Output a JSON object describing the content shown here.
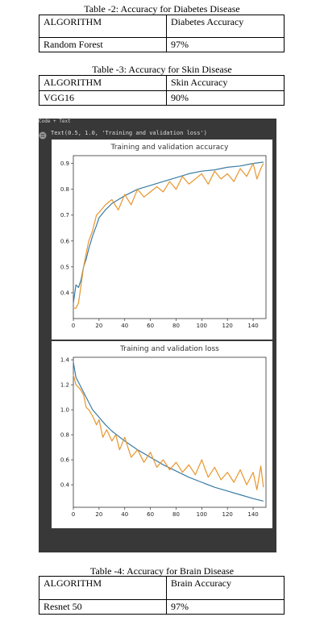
{
  "tables": [
    {
      "caption": "Table -2: Accuracy for Diabetes Disease",
      "header": [
        "ALGORITHM",
        "Diabetes Accuracy"
      ],
      "row": [
        "Random Forest",
        "97%"
      ]
    },
    {
      "caption": "Table -3: Accuracy for  Skin Disease",
      "header": [
        "ALGORITHM",
        "Skin Accuracy"
      ],
      "row": [
        "VGG16",
        "90%"
      ]
    },
    {
      "caption": "Table -4: Accuracy for Brain Disease",
      "header": [
        "ALGORITHM",
        "Brain Accuracy"
      ],
      "row": [
        "Resnet 50",
        "97%"
      ]
    }
  ],
  "notebook": {
    "header_text": "Code  + Text",
    "output_text": "Text(0.5, 1.0, 'Training and validation loss')",
    "colors": {
      "background": "#383838",
      "train": "#3a7ca5",
      "validation": "#e8952c"
    }
  },
  "chart_data": [
    {
      "type": "line",
      "title": "Training and validation accuracy",
      "xlabel": "",
      "ylabel": "",
      "xlim": [
        0,
        150
      ],
      "ylim": [
        0.3,
        0.93
      ],
      "xticks": [
        0,
        20,
        40,
        60,
        80,
        100,
        120,
        140
      ],
      "yticks": [
        0.4,
        0.5,
        0.6,
        0.7,
        0.8,
        0.9
      ],
      "grid": false,
      "series": [
        {
          "x": [
            0,
            2,
            4,
            6,
            8,
            10,
            12,
            15,
            18,
            20,
            25,
            30,
            35,
            40,
            50,
            60,
            70,
            80,
            90,
            100,
            110,
            120,
            130,
            140,
            148
          ],
          "y": [
            0.36,
            0.43,
            0.42,
            0.45,
            0.5,
            0.53,
            0.57,
            0.62,
            0.66,
            0.69,
            0.72,
            0.745,
            0.76,
            0.775,
            0.8,
            0.815,
            0.83,
            0.845,
            0.86,
            0.87,
            0.875,
            0.885,
            0.89,
            0.9,
            0.905
          ]
        },
        {
          "x": [
            0,
            2,
            4,
            6,
            8,
            10,
            12,
            15,
            18,
            20,
            25,
            30,
            35,
            40,
            45,
            50,
            55,
            60,
            65,
            70,
            75,
            80,
            85,
            90,
            95,
            100,
            105,
            110,
            115,
            120,
            125,
            130,
            135,
            140,
            143,
            146,
            148
          ],
          "y": [
            0.34,
            0.34,
            0.36,
            0.43,
            0.5,
            0.55,
            0.6,
            0.64,
            0.7,
            0.71,
            0.74,
            0.76,
            0.72,
            0.78,
            0.74,
            0.8,
            0.77,
            0.79,
            0.81,
            0.79,
            0.83,
            0.8,
            0.85,
            0.82,
            0.84,
            0.86,
            0.82,
            0.87,
            0.84,
            0.86,
            0.83,
            0.88,
            0.85,
            0.9,
            0.84,
            0.88,
            0.9
          ]
        }
      ]
    },
    {
      "type": "line",
      "title": "Training and validation loss",
      "xlabel": "",
      "ylabel": "",
      "xlim": [
        0,
        150
      ],
      "ylim": [
        0.22,
        1.42
      ],
      "xticks": [
        0,
        20,
        40,
        60,
        80,
        100,
        120,
        140
      ],
      "yticks": [
        0.4,
        0.6,
        0.8,
        1.0,
        1.2,
        1.4
      ],
      "grid": false,
      "series": [
        {
          "x": [
            0,
            2,
            5,
            10,
            15,
            20,
            25,
            30,
            40,
            50,
            60,
            70,
            80,
            90,
            100,
            110,
            120,
            130,
            140,
            148
          ],
          "y": [
            1.38,
            1.26,
            1.2,
            1.1,
            1.0,
            0.94,
            0.88,
            0.83,
            0.75,
            0.68,
            0.62,
            0.56,
            0.51,
            0.46,
            0.42,
            0.38,
            0.35,
            0.32,
            0.29,
            0.27
          ]
        },
        {
          "x": [
            0,
            2,
            5,
            8,
            10,
            12,
            15,
            18,
            20,
            23,
            26,
            30,
            33,
            36,
            40,
            45,
            50,
            55,
            60,
            65,
            70,
            75,
            80,
            85,
            90,
            95,
            100,
            105,
            110,
            115,
            120,
            125,
            130,
            135,
            140,
            143,
            146,
            148
          ],
          "y": [
            1.28,
            1.2,
            1.17,
            1.12,
            1.02,
            1.0,
            0.95,
            0.88,
            0.92,
            0.78,
            0.84,
            0.75,
            0.8,
            0.68,
            0.78,
            0.62,
            0.68,
            0.58,
            0.66,
            0.54,
            0.6,
            0.52,
            0.58,
            0.5,
            0.56,
            0.48,
            0.6,
            0.46,
            0.54,
            0.44,
            0.5,
            0.42,
            0.52,
            0.4,
            0.5,
            0.36,
            0.55,
            0.38
          ]
        }
      ]
    }
  ]
}
